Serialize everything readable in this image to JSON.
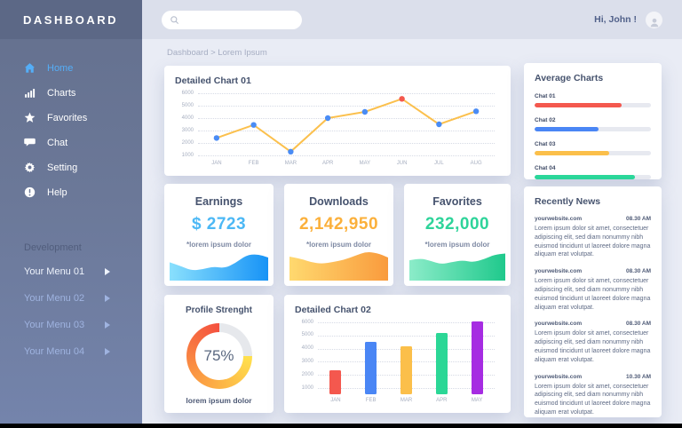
{
  "sidebar": {
    "title": "DASHBOARD",
    "items": [
      {
        "label": "Home",
        "icon": "home",
        "active": true
      },
      {
        "label": "Charts",
        "icon": "charts",
        "active": false
      },
      {
        "label": "Favorites",
        "icon": "star",
        "active": false
      },
      {
        "label": "Chat",
        "icon": "chat",
        "active": false
      },
      {
        "label": "Setting",
        "icon": "gear",
        "active": false
      },
      {
        "label": "Help",
        "icon": "help",
        "active": false
      }
    ],
    "section_label": "Development",
    "dev_items": [
      {
        "label": "Your Menu 01"
      },
      {
        "label": "Your Menu 02"
      },
      {
        "label": "Your Menu 03"
      },
      {
        "label": "Your Menu 04"
      }
    ]
  },
  "topbar": {
    "search_placeholder": "",
    "greeting": "Hi, John !"
  },
  "breadcrumb": "Dashboard > Lorem Ipsum",
  "stats": [
    {
      "title": "Earnings",
      "value": "$ 2723",
      "note": "*lorem ipsum dolor",
      "value_color": "#4cb8f5",
      "spark_id": "earnings-spark"
    },
    {
      "title": "Downloads",
      "value": "2,142,950",
      "note": "*lorem ipsum dolor",
      "value_color": "#fbb03b",
      "spark_id": "downloads-spark"
    },
    {
      "title": "Favorites",
      "value": "232,000",
      "note": "*lorem ipsum dolor",
      "value_color": "#2ed49a",
      "spark_id": "favorites-spark"
    }
  ],
  "news": {
    "title": "Recently News",
    "items": [
      {
        "source": "yourwebsite.com",
        "time": "08.30 AM",
        "body": "Lorem ipsum dolor sit amet, consectetuer adipiscing elit, sed diam nonummy nibh euismod tincidunt ut laoreet dolore magna aliquam erat volutpat."
      },
      {
        "source": "yourwebsite.com",
        "time": "08.30 AM",
        "body": "Lorem ipsum dolor sit amet, consectetuer adipiscing elit, sed diam nonummy nibh euismod tincidunt ut laoreet dolore magna aliquam erat volutpat."
      },
      {
        "source": "yourwebsite.com",
        "time": "08.30 AM",
        "body": "Lorem ipsum dolor sit amet, consectetuer adipiscing elit, sed diam nonummy nibh euismod tincidunt ut laoreet dolore magna aliquam erat volutpat."
      },
      {
        "source": "yourwebsite.com",
        "time": "10.30 AM",
        "body": "Lorem ipsum dolor sit amet, consectetuer adipiscing elit, sed diam nonummy nibh euismod tincidunt ut laoreet dolore magna aliquam erat volutpat."
      }
    ]
  },
  "chart_data": [
    {
      "id": "detailed-chart-01",
      "type": "line",
      "title": "Detailed Chart 01",
      "x": [
        "JAN",
        "FEB",
        "MAR",
        "APR",
        "MAY",
        "JUN",
        "JUL",
        "AUG"
      ],
      "values": [
        2400,
        3450,
        1300,
        4000,
        4500,
        5550,
        3500,
        4550
      ],
      "y_ticks": [
        6000,
        5000,
        4000,
        3000,
        2000,
        1000
      ],
      "ylim": [
        1000,
        6000
      ],
      "grid": "dotted horizontal",
      "line_color": "#fbc04d",
      "point_color": "#4a8cf5",
      "highlight": {
        "index": 5,
        "color": "#f4584e"
      }
    },
    {
      "id": "average-charts",
      "type": "bar",
      "subtype": "horizontal-progress",
      "title": "Average Charts",
      "track_color": "#e7e9f0",
      "items": [
        {
          "label": "Chat 01",
          "percent": 75,
          "color": "#f4584e"
        },
        {
          "label": "Chat 02",
          "percent": 55,
          "color": "#4a86f5"
        },
        {
          "label": "Chat 03",
          "percent": 64,
          "color": "#fbbf4a"
        },
        {
          "label": "Chat 04",
          "percent": 86,
          "color": "#2bd79a"
        }
      ]
    },
    {
      "id": "earnings-spark",
      "type": "area",
      "title": "Earnings trend sparkline",
      "values": [
        0.55,
        0.42,
        0.26,
        0.3,
        0.4,
        0.34,
        0.52,
        0.8,
        0.84,
        0.72
      ],
      "gradient": [
        "#8ae0fd",
        "#1793f6"
      ]
    },
    {
      "id": "downloads-spark",
      "type": "area",
      "title": "Downloads trend sparkline",
      "values": [
        0.75,
        0.68,
        0.55,
        0.5,
        0.56,
        0.64,
        0.78,
        0.92,
        0.88,
        0.72
      ],
      "gradient": [
        "#ffd96f",
        "#f99b3d"
      ]
    },
    {
      "id": "favorites-spark",
      "type": "area",
      "title": "Favorites trend sparkline",
      "values": [
        0.62,
        0.7,
        0.6,
        0.48,
        0.56,
        0.62,
        0.55,
        0.66,
        0.82,
        0.86
      ],
      "gradient": [
        "#8cecc9",
        "#1fc98c"
      ]
    },
    {
      "id": "profile-strength",
      "type": "pie",
      "subtype": "donut",
      "title": "Profile Strenght",
      "percent": 75,
      "center_label": "75%",
      "caption": "lorem ipsum dolor",
      "segment_colors": [
        "#ffe14d",
        "#fb9b43",
        "#f4503f"
      ],
      "track_color": "#e6e8ec"
    },
    {
      "id": "detailed-chart-02",
      "type": "bar",
      "title": "Detailed Chart 02",
      "categories": [
        "JAN",
        "FEB",
        "MAR",
        "APR",
        "MAY"
      ],
      "values": [
        2350,
        4500,
        4200,
        5200,
        6100
      ],
      "bar_colors": [
        "#f4584e",
        "#4a86f5",
        "#fbbf4a",
        "#2bd796",
        "#a62ce2"
      ],
      "y_ticks": [
        6000,
        5000,
        4000,
        3000,
        2000,
        1000
      ],
      "ylim": [
        1000,
        6000
      ],
      "grid": "dotted horizontal"
    }
  ],
  "colors": {
    "sidebar_active": "#54aef8",
    "sidebar_bg_top": "#64708e",
    "sidebar_bg_bottom": "#7484ac",
    "topbar_bg": "#dbdfeb",
    "content_bg": "#e9ecf5",
    "card_title": "#46536e"
  }
}
